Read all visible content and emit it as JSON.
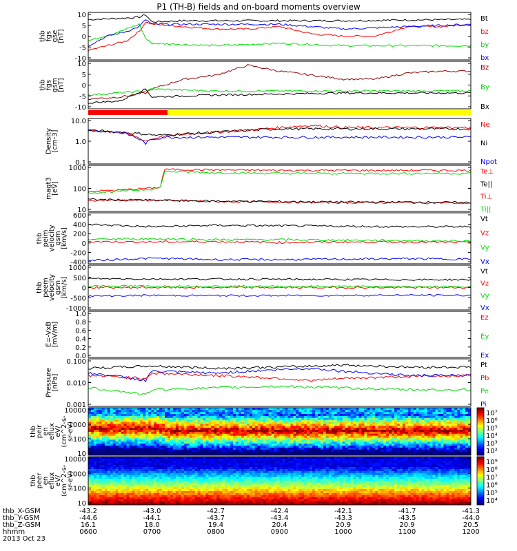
{
  "title": "P1  (TH-B) fields and on-board moments overview",
  "colors": {
    "black": "#000000",
    "red": "#ff0000",
    "green": "#00dd00",
    "blue": "#0000ff",
    "darkred": "#990000",
    "yellow": "#ffff00"
  },
  "chart_data": [
    {
      "type": "line",
      "ylabel": [
        "thb",
        "fgs",
        "gse",
        "[nT]"
      ],
      "ylim": [
        -10,
        10
      ],
      "yticks": [
        "10",
        "5",
        "0",
        "-5",
        "-10"
      ],
      "series": [
        {
          "name": "Bt",
          "color": "black",
          "x": [
            0,
            0.5,
            0.8,
            0.9,
            1.0,
            1.5,
            2,
            3,
            4,
            5,
            6
          ],
          "values": [
            7,
            7.5,
            8,
            9,
            6,
            6.5,
            6.5,
            6.5,
            6.5,
            6.8,
            7
          ]
        },
        {
          "name": "bz",
          "color": "red",
          "x": [
            0,
            0.3,
            0.6,
            0.8,
            0.9,
            1.0,
            1.5,
            2,
            2.5,
            3,
            3.5,
            4,
            4.5,
            5,
            5.5,
            6
          ],
          "values": [
            -6,
            -4,
            -2,
            2,
            6,
            5,
            4,
            3,
            3,
            4,
            1,
            0,
            0,
            4,
            4,
            5
          ]
        },
        {
          "name": "by",
          "color": "green",
          "x": [
            0,
            0.5,
            0.8,
            0.9,
            1.0,
            2,
            3,
            4,
            5,
            6
          ],
          "values": [
            -2,
            2,
            5,
            -1,
            -3,
            -4,
            -3,
            -4,
            -4,
            -4
          ]
        },
        {
          "name": "bx",
          "color": "blue",
          "x": [
            0,
            0.3,
            0.6,
            0.8,
            0.9,
            1.0,
            2,
            3,
            4,
            5,
            6
          ],
          "values": [
            -4,
            0,
            2,
            4,
            7,
            5,
            5,
            5,
            3,
            4,
            5
          ]
        }
      ]
    },
    {
      "type": "line",
      "ylabel": [
        "thb",
        "fgs",
        "gsm",
        "[nT]"
      ],
      "ylim": [
        -12,
        12
      ],
      "yticks": [
        "10",
        "5",
        "0",
        "-5",
        "-10"
      ],
      "series": [
        {
          "name": "Bz",
          "color": "darkred",
          "x": [
            0,
            0.5,
            0.9,
            1.0,
            1.5,
            2.0,
            2.5,
            3.0,
            3.5,
            4.0,
            4.5,
            5.0,
            5.5,
            6.0
          ],
          "values": [
            -7,
            -6,
            -4,
            -2,
            3,
            5,
            10,
            7,
            5,
            3,
            3,
            6,
            7,
            7
          ]
        },
        {
          "name": "By",
          "color": "green",
          "x": [
            0,
            0.9,
            1.0,
            2,
            3,
            4,
            5,
            6
          ],
          "values": [
            -5,
            -3,
            -2,
            -3,
            -3,
            -3,
            -3,
            -3
          ]
        },
        {
          "name": "Bx",
          "color": "black",
          "x": [
            0,
            0.5,
            0.9,
            1.0,
            2,
            4,
            6
          ],
          "values": [
            -9,
            -8,
            -2,
            -6,
            -5,
            -4,
            -4
          ]
        }
      ]
    },
    {
      "type": "line",
      "scale": "log",
      "ylabel": [
        "Density",
        "[cm-3]"
      ],
      "ylim": [
        0.1,
        10
      ],
      "yticks": [
        "10.0",
        "1.0",
        "0.1"
      ],
      "series": [
        {
          "name": "Ne",
          "color": "red",
          "x": [
            0,
            0.5,
            0.9,
            1.1,
            1.5,
            2,
            2.5,
            3,
            3.5,
            4,
            5,
            6
          ],
          "values": [
            3,
            2.5,
            1,
            1.5,
            2,
            2.5,
            3,
            4,
            5,
            4,
            4,
            4
          ]
        },
        {
          "name": "Ni",
          "color": "black",
          "x": [
            0,
            0.5,
            1.1,
            2,
            3,
            4,
            5,
            6
          ],
          "values": [
            3,
            2.5,
            1.8,
            2.5,
            3.5,
            3.5,
            3.5,
            3.5
          ]
        },
        {
          "name": "Npot",
          "color": "blue",
          "x": [
            0,
            0.5,
            0.9,
            1.0,
            1.2
          ],
          "values": [
            3,
            2.5,
            0.8,
            1.2,
            1.5
          ]
        }
      ]
    },
    {
      "type": "line",
      "scale": "log",
      "ylabel": [
        "magt3",
        "[eV]"
      ],
      "ylim": [
        5,
        1500
      ],
      "yticks": [
        "1000",
        "100",
        "10"
      ],
      "series": [
        {
          "name": "Te⊥",
          "color": "red",
          "x": [
            0,
            1,
            2,
            3,
            4,
            5,
            6
          ],
          "values": [
            20,
            20,
            17,
            16,
            15,
            15,
            14
          ]
        },
        {
          "name": "Te||",
          "color": "black",
          "x": [
            0,
            1,
            2,
            3,
            4,
            5,
            6
          ],
          "values": [
            22,
            20,
            18,
            17,
            16,
            16,
            15
          ]
        },
        {
          "name": "Ti⊥",
          "color": "red",
          "x": [
            0,
            0.5,
            1.0,
            1.15,
            1.2,
            2,
            3,
            4,
            5,
            6
          ],
          "values": [
            60,
            70,
            90,
            100,
            900,
            850,
            800,
            800,
            800,
            800
          ]
        },
        {
          "name": "Ti||",
          "color": "green",
          "x": [
            0,
            0.5,
            1.0,
            1.15,
            1.2,
            2,
            3,
            4,
            5,
            6
          ],
          "values": [
            50,
            60,
            80,
            100,
            700,
            600,
            550,
            550,
            550,
            550
          ]
        }
      ]
    },
    {
      "type": "line",
      "ylabel": [
        "thb",
        "peim",
        "velocity",
        "gsm",
        "[km/s]"
      ],
      "ylim": [
        -450,
        650
      ],
      "yticks": [
        "600",
        "400",
        "200",
        "0",
        "-200",
        "-400"
      ],
      "series": [
        {
          "name": "Vt",
          "color": "black",
          "x": [
            0,
            1,
            2,
            3,
            4,
            5,
            6
          ],
          "values": [
            400,
            350,
            380,
            370,
            360,
            350,
            350
          ]
        },
        {
          "name": "Vz",
          "color": "red",
          "x": [
            0,
            1,
            2,
            3,
            4,
            5,
            6
          ],
          "values": [
            30,
            20,
            30,
            10,
            20,
            20,
            10
          ]
        },
        {
          "name": "Vy",
          "color": "green",
          "x": [
            0,
            1,
            2,
            3,
            4,
            5,
            6
          ],
          "values": [
            80,
            90,
            70,
            70,
            60,
            50,
            40
          ]
        },
        {
          "name": "Vx",
          "color": "blue",
          "x": [
            0,
            1,
            2,
            3,
            4,
            5,
            6
          ],
          "values": [
            -380,
            -330,
            -360,
            -360,
            -350,
            -340,
            -350
          ]
        }
      ]
    },
    {
      "type": "line",
      "ylabel": [
        "thb",
        "peem",
        "velocity",
        "gsm",
        "[km/s]"
      ],
      "ylim": [
        -1000,
        1000
      ],
      "yticks": [
        "1000",
        "500",
        "0",
        "-500",
        "-1000"
      ],
      "series": [
        {
          "name": "Vt",
          "color": "black",
          "x": [
            0,
            1,
            2,
            3,
            4,
            5,
            6
          ],
          "values": [
            400,
            380,
            380,
            370,
            360,
            350,
            350
          ]
        },
        {
          "name": "Vz",
          "color": "red",
          "x": [
            0,
            1,
            2,
            3,
            4,
            5,
            6
          ],
          "values": [
            0,
            0,
            0,
            0,
            0,
            0,
            0
          ]
        },
        {
          "name": "Vy",
          "color": "green",
          "x": [
            0,
            1,
            2,
            3,
            4,
            5,
            6
          ],
          "values": [
            80,
            60,
            60,
            50,
            50,
            40,
            40
          ]
        },
        {
          "name": "Vx",
          "color": "blue",
          "x": [
            0,
            1,
            2,
            3,
            4,
            5,
            6
          ],
          "values": [
            -380,
            -350,
            -360,
            -360,
            -350,
            -340,
            -350
          ]
        }
      ]
    },
    {
      "type": "line",
      "ylabel": [
        "E=-VxB",
        "[mV/m]"
      ],
      "ylim": [
        0,
        1
      ],
      "yticks": [
        "1.0",
        "0.8",
        "0.6",
        "0.4",
        "0.2",
        "0.0"
      ],
      "series": [
        {
          "name": "Ez",
          "color": "red",
          "x": [],
          "values": []
        },
        {
          "name": "Ey",
          "color": "green",
          "x": [],
          "values": []
        },
        {
          "name": "Ex",
          "color": "blue",
          "x": [],
          "values": []
        }
      ]
    },
    {
      "type": "line",
      "scale": "log",
      "ylabel": [
        "Pressure",
        "[nPa]"
      ],
      "ylim": [
        0.001,
        0.1
      ],
      "yticks": [
        "0.100",
        "0.010",
        "0.001"
      ],
      "series": [
        {
          "name": "Pt",
          "color": "black",
          "x": [
            0,
            1,
            2,
            3,
            4,
            5,
            6
          ],
          "values": [
            0.04,
            0.05,
            0.04,
            0.045,
            0.055,
            0.045,
            0.045
          ]
        },
        {
          "name": "Pb",
          "color": "red",
          "x": [
            0,
            0.9,
            1.0,
            2,
            3,
            3.5,
            4,
            5,
            6
          ],
          "values": [
            0.02,
            0.015,
            0.025,
            0.02,
            0.015,
            0.012,
            0.015,
            0.018,
            0.02
          ]
        },
        {
          "name": "Pe",
          "color": "green",
          "x": [
            0,
            0.9,
            1.0,
            2,
            3,
            4,
            5,
            6
          ],
          "values": [
            0.006,
            0.003,
            0.005,
            0.006,
            0.007,
            0.006,
            0.005,
            0.005
          ]
        },
        {
          "name": "Pi",
          "color": "blue",
          "x": [
            0,
            0.9,
            1.0,
            2,
            3,
            3.5,
            4,
            5,
            6
          ],
          "values": [
            0.025,
            0.012,
            0.03,
            0.025,
            0.035,
            0.04,
            0.03,
            0.02,
            0.02
          ]
        }
      ]
    },
    {
      "type": "heatmap",
      "ylabel": [
        "thb",
        "peir",
        "en",
        "eflux",
        "eV/",
        "(cm^2-s-",
        "sr-eV)"
      ],
      "ylim": [
        5,
        20000
      ],
      "yticks": [
        "10000",
        "1000",
        "100",
        "10"
      ],
      "colorbar": [
        "10⁷",
        "10⁶",
        "10⁵",
        "10⁴",
        "10³",
        "10²"
      ]
    },
    {
      "type": "heatmap",
      "ylabel": [
        "thb",
        "peer",
        "en",
        "eflux",
        "eV/",
        "(cm^2-s-",
        "sr-eV)"
      ],
      "ylim": [
        5,
        20000
      ],
      "yticks": [
        "10000",
        "1000",
        "100",
        "10"
      ],
      "colorbar": [
        "10⁹",
        "10⁸",
        "10⁷",
        "10⁶",
        "10⁵",
        "10⁴"
      ]
    }
  ],
  "xaxis": {
    "rows": [
      {
        "label": "thb_X-GSM",
        "values": [
          "-43.2",
          "-43.0",
          "-42.7",
          "-42.4",
          "-42.1",
          "-41.7",
          "-41.3"
        ]
      },
      {
        "label": "thb_Y-GSM",
        "values": [
          "-44.6",
          "-44.1",
          "-43.7",
          "-43.4",
          "-43.3",
          "-43.5",
          "-44.0"
        ]
      },
      {
        "label": "thb_Z-GSM",
        "values": [
          "16.1",
          "18.0",
          "19.4",
          "20.4",
          "20.9",
          "20.9",
          "20.5"
        ]
      },
      {
        "label": "hhmm",
        "values": [
          "0600",
          "0700",
          "0800",
          "0900",
          "1000",
          "1100",
          "1200"
        ]
      }
    ],
    "date": "2013 Oct 23"
  }
}
